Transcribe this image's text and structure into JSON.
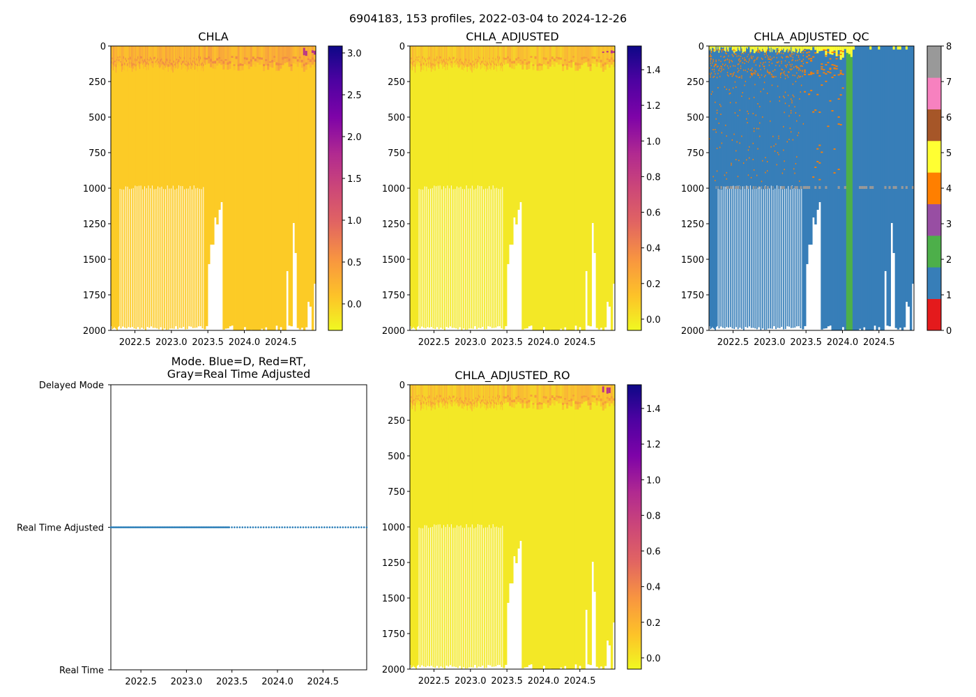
{
  "figure": {
    "suptitle": "6904183, 153 profiles, 2022-03-04 to 2024-12-26"
  },
  "profiles": {
    "count": 153,
    "segments": [
      {
        "from": 2022.17,
        "to": 2023.47,
        "count": 100
      },
      {
        "from": 2023.47,
        "to": 2024.98,
        "count": 53
      }
    ],
    "alternate_truncation": {
      "from": 2022.27,
      "to": 2023.44,
      "depth": 995
    },
    "gaps": [
      {
        "from": 2023.508,
        "to": 2023.537,
        "depth": 1534
      },
      {
        "from": 2023.537,
        "to": 2023.575,
        "depth": 1397
      },
      {
        "from": 2023.575,
        "to": 2023.594,
        "depth": 1275
      },
      {
        "from": 2023.594,
        "to": 2023.623,
        "depth": 1206
      },
      {
        "from": 2023.623,
        "to": 2023.652,
        "depth": 1255
      },
      {
        "from": 2023.652,
        "to": 2023.681,
        "depth": 1152
      },
      {
        "from": 2023.681,
        "to": 2023.7,
        "depth": 1098
      },
      {
        "from": 2024.57,
        "to": 2024.6,
        "depth": 1583
      },
      {
        "from": 2024.656,
        "to": 2024.684,
        "depth": 1245
      },
      {
        "from": 2024.703,
        "to": 2024.732,
        "depth": 1456
      },
      {
        "from": 2024.876,
        "to": 2024.895,
        "depth": 1799
      },
      {
        "from": 2024.895,
        "to": 2024.923,
        "depth": 1833
      },
      {
        "from": 2024.952,
        "to": 2024.99,
        "depth": 1672
      }
    ]
  },
  "chart_data": [
    {
      "type": "heatmap",
      "title": "CHLA",
      "xlim": [
        2022.17,
        2024.98
      ],
      "ylim": [
        2000,
        0
      ],
      "xticks": [
        "2022.5",
        "2023.0",
        "2023.5",
        "2024.0",
        "2024.5"
      ],
      "yticks": [
        "0",
        "250",
        "500",
        "750",
        "1000",
        "1250",
        "1500",
        "1750",
        "2000"
      ],
      "colors": {
        "body": "#fccb26",
        "surface": [
          "#fbb532",
          "#f9a93a",
          "#fbbf2d",
          "#f7a13d"
        ],
        "dcm": "#ef8a47",
        "peak": "#b83289"
      },
      "colorbar": {
        "colormap": "plasma_r",
        "range": [
          -0.317,
          3.083
        ],
        "ticks": [
          "0.0",
          "0.5",
          "1.0",
          "1.5",
          "2.0",
          "2.5",
          "3.0"
        ]
      }
    },
    {
      "type": "heatmap",
      "title": "CHLA_ADJUSTED",
      "xlim": [
        2022.17,
        2024.98
      ],
      "ylim": [
        2000,
        0
      ],
      "xticks": [
        "2022.5",
        "2023.0",
        "2023.5",
        "2024.0",
        "2024.5"
      ],
      "yticks": [
        "0",
        "250",
        "500",
        "750",
        "1000",
        "1250",
        "1500",
        "1750",
        "2000"
      ],
      "colors": {
        "body": "#f3e826",
        "surface": [
          "#f9c62e",
          "#f8bb33",
          "#f6d22a",
          "#fab536"
        ],
        "dcm": "#f59d3b",
        "peak": "#b83289"
      },
      "colorbar": {
        "colormap": "plasma_r",
        "range": [
          -0.063,
          1.533
        ],
        "ticks": [
          "0.0",
          "0.2",
          "0.4",
          "0.6",
          "0.8",
          "1.0",
          "1.2",
          "1.4"
        ]
      }
    },
    {
      "type": "heatmap",
      "title": "CHLA_ADJUSTED_QC",
      "xlim": [
        2022.17,
        2024.98
      ],
      "ylim": [
        2000,
        0
      ],
      "xticks": [
        "2022.5",
        "2023.0",
        "2023.5",
        "2024.0",
        "2024.5"
      ],
      "yticks": [
        "0",
        "250",
        "500",
        "750",
        "1000",
        "1250",
        "1500",
        "1750",
        "2000"
      ],
      "dominant_flag": 1,
      "surface_flag": 5,
      "flag2_period": [
        2024.034,
        2024.13
      ],
      "colorbar": {
        "colormap": "Set1",
        "range": [
          0,
          8
        ],
        "ticks": [
          "0",
          "1",
          "2",
          "3",
          "4",
          "5",
          "6",
          "7",
          "8"
        ],
        "colors": [
          "#e41a1c",
          "#377eb8",
          "#4daf4a",
          "#984ea3",
          "#ff7f00",
          "#ffff33",
          "#a65628",
          "#f781bf",
          "#999999"
        ]
      }
    },
    {
      "type": "scatter",
      "title_lines": [
        "Mode. Blue=D, Red=RT,",
        "Gray=Real Time Adjusted"
      ],
      "xlim": [
        2022.17,
        2024.98
      ],
      "xticks": [
        "2022.5",
        "2023.0",
        "2023.5",
        "2024.0",
        "2024.5"
      ],
      "yticklabels": [
        "Real Time",
        "Real Time Adjusted",
        "Delayed Mode"
      ],
      "series": [
        {
          "name": "mode",
          "value": "Real Time Adjusted",
          "color": "#1f77b4"
        }
      ]
    },
    {
      "type": "heatmap",
      "title": "CHLA_ADJUSTED_RO",
      "xlim": [
        2022.17,
        2024.98
      ],
      "ylim": [
        2000,
        0
      ],
      "xticks": [
        "2022.5",
        "2023.0",
        "2023.5",
        "2024.0",
        "2024.5"
      ],
      "yticks": [
        "0",
        "250",
        "500",
        "750",
        "1000",
        "1250",
        "1500",
        "1750",
        "2000"
      ],
      "colors": {
        "body": "#f3e826",
        "surface": [
          "#f9c62e",
          "#f8bb33",
          "#f6d22a",
          "#fab536"
        ],
        "dcm": "#f59d3b",
        "peak": "#b83289"
      },
      "colorbar": {
        "colormap": "plasma_r",
        "range": [
          -0.063,
          1.533
        ],
        "ticks": [
          "0.0",
          "0.2",
          "0.4",
          "0.6",
          "0.8",
          "1.0",
          "1.2",
          "1.4"
        ]
      }
    }
  ]
}
